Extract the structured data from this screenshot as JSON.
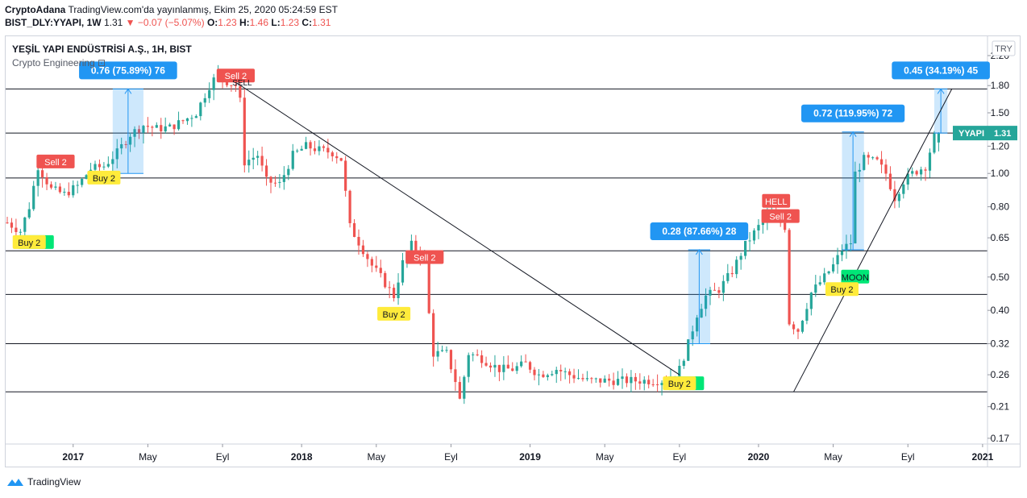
{
  "header": {
    "publisher": "CryptoAdana",
    "published_text": "TradingView.com'da yayınlanmış, Ekim 25, 2020 05:24:59 EST",
    "symbol": "BIST_DLY:YYAPI, 1W",
    "last": "1.31",
    "change": "−0.07 (−5.07%)",
    "o_label": "O:",
    "o": "1.23",
    "h_label": "H:",
    "h": "1.46",
    "l_label": "L:",
    "l": "1.23",
    "c_label": "C:",
    "c": "1.31"
  },
  "legend": {
    "title": "YEŞİL YAPI ENDÜSTRİSİ A.Ş., 1H, BIST",
    "indicator": "Crypto Engineering ⊡"
  },
  "currency": "TRY",
  "price_tag": {
    "symbol": "YYAPI",
    "value": "1.31"
  },
  "footer": {
    "brand": "TradingView"
  },
  "colors": {
    "up": "#26a69a",
    "down": "#ef5350",
    "measure": "#2196f3",
    "sell": "#ef5350",
    "buy": "#ffeb3b",
    "moon": "#00e676"
  },
  "chart_data": {
    "type": "candlestick",
    "y_scale": "log",
    "ylim": [
      0.155,
      2.45
    ],
    "y_ticks": [
      "2.20",
      "1.80",
      "1.50",
      "1.20",
      "1.00",
      "0.80",
      "0.65",
      "0.50",
      "0.40",
      "0.32",
      "0.26",
      "0.21",
      "0.17"
    ],
    "x_ticks": [
      {
        "label": "2017",
        "week": 15,
        "bold": true
      },
      {
        "label": "May",
        "week": 32
      },
      {
        "label": "Eyl",
        "week": 49
      },
      {
        "label": "2018",
        "week": 67,
        "bold": true
      },
      {
        "label": "May",
        "week": 84
      },
      {
        "label": "Eyl",
        "week": 101
      },
      {
        "label": "2019",
        "week": 119,
        "bold": true
      },
      {
        "label": "May",
        "week": 136
      },
      {
        "label": "Eyl",
        "week": 153
      },
      {
        "label": "2020",
        "week": 171,
        "bold": true
      },
      {
        "label": "May",
        "week": 188
      },
      {
        "label": "Eyl",
        "week": 205
      },
      {
        "label": "2021",
        "week": 222,
        "bold": true
      }
    ],
    "close_path": [
      [
        0,
        0.72
      ],
      [
        3,
        0.68
      ],
      [
        5,
        0.8
      ],
      [
        7,
        1.05
      ],
      [
        10,
        0.9
      ],
      [
        13,
        0.87
      ],
      [
        16,
        0.92
      ],
      [
        19,
        1.03
      ],
      [
        22,
        1.05
      ],
      [
        25,
        1.15
      ],
      [
        28,
        1.3
      ],
      [
        31,
        1.38
      ],
      [
        34,
        1.35
      ],
      [
        37,
        1.36
      ],
      [
        40,
        1.42
      ],
      [
        43,
        1.5
      ],
      [
        46,
        1.8
      ],
      [
        48,
        1.95
      ],
      [
        50,
        1.85
      ],
      [
        52,
        1.8
      ],
      [
        53,
        1.62
      ],
      [
        54,
        1.08
      ],
      [
        57,
        1.13
      ],
      [
        59,
        0.95
      ],
      [
        62,
        0.93
      ],
      [
        65,
        1.13
      ],
      [
        68,
        1.2
      ],
      [
        71,
        1.17
      ],
      [
        74,
        1.15
      ],
      [
        76,
        1.1
      ],
      [
        78,
        0.7
      ],
      [
        81,
        0.6
      ],
      [
        83,
        0.54
      ],
      [
        85,
        0.5
      ],
      [
        88,
        0.44
      ],
      [
        90,
        0.55
      ],
      [
        92,
        0.62
      ],
      [
        95,
        0.57
      ],
      [
        96,
        0.39
      ],
      [
        97,
        0.3
      ],
      [
        100,
        0.3
      ],
      [
        102,
        0.25
      ],
      [
        103,
        0.22
      ],
      [
        105,
        0.3
      ],
      [
        108,
        0.29
      ],
      [
        112,
        0.27
      ],
      [
        115,
        0.27
      ],
      [
        118,
        0.28
      ],
      [
        121,
        0.26
      ],
      [
        125,
        0.27
      ],
      [
        128,
        0.26
      ],
      [
        132,
        0.25
      ],
      [
        136,
        0.25
      ],
      [
        140,
        0.25
      ],
      [
        145,
        0.25
      ],
      [
        150,
        0.25
      ],
      [
        153,
        0.27
      ],
      [
        155,
        0.32
      ],
      [
        157,
        0.39
      ],
      [
        159,
        0.44
      ],
      [
        162,
        0.46
      ],
      [
        165,
        0.52
      ],
      [
        168,
        0.62
      ],
      [
        171,
        0.7
      ],
      [
        174,
        0.76
      ],
      [
        177,
        0.7
      ],
      [
        178,
        0.37
      ],
      [
        180,
        0.35
      ],
      [
        183,
        0.45
      ],
      [
        186,
        0.5
      ],
      [
        188,
        0.54
      ],
      [
        190,
        0.6
      ],
      [
        192,
        0.63
      ],
      [
        193,
        1.0
      ],
      [
        195,
        1.1
      ],
      [
        198,
        1.08
      ],
      [
        200,
        1.0
      ],
      [
        202,
        0.85
      ],
      [
        204,
        0.95
      ],
      [
        206,
        1.0
      ],
      [
        209,
        1.05
      ],
      [
        211,
        1.28
      ],
      [
        212,
        1.31
      ]
    ],
    "horizontal_levels": [
      1.76,
      1.31,
      0.97,
      0.596,
      0.445,
      0.32,
      0.232
    ],
    "trendlines": [
      {
        "from": [
          52,
          1.84
        ],
        "to": [
          153,
          0.26
        ]
      },
      {
        "from": [
          179,
          0.232
        ],
        "to": [
          215,
          1.76
        ]
      }
    ],
    "measure_boxes": [
      {
        "label": "0.76 (75.89%) 76",
        "x0": 24,
        "x1": 31,
        "bottom": 1.0,
        "top": 1.76
      },
      {
        "label": "0.28 (87.66%) 28",
        "x0": 155,
        "x1": 160,
        "bottom": 0.32,
        "top": 0.6
      },
      {
        "label": "0.72 (119.95%) 72",
        "x0": 190,
        "x1": 195,
        "bottom": 0.6,
        "top": 1.32
      },
      {
        "label": "0.45 (34.19%) 45",
        "x0": 211,
        "x1": 214,
        "bottom": 1.31,
        "top": 1.76
      }
    ],
    "signals": [
      {
        "text": "Sell 2",
        "kind": "sell",
        "week": 11,
        "price": 1.08
      },
      {
        "text": "Buy 2",
        "kind": "buy",
        "week": 22,
        "price": 0.97
      },
      {
        "text": "Buy 2",
        "kind": "buy",
        "week": 5,
        "price": 0.63,
        "with_green": true
      },
      {
        "text": "Sell 2",
        "kind": "sell",
        "week": 52,
        "price": 1.92,
        "ghost": "SELL"
      },
      {
        "text": "Sell 2",
        "kind": "sell",
        "week": 95,
        "price": 0.57
      },
      {
        "text": "Buy 2",
        "kind": "buy",
        "week": 88,
        "price": 0.39
      },
      {
        "text": "Buy 2",
        "kind": "buy",
        "week": 153,
        "price": 0.245,
        "with_green": true
      },
      {
        "text": "HELL",
        "kind": "sell",
        "week": 175,
        "price": 0.83
      },
      {
        "text": "Sell 2",
        "kind": "sell",
        "week": 176,
        "price": 0.75
      },
      {
        "text": "MOON",
        "kind": "moon",
        "week": 193,
        "price": 0.5
      },
      {
        "text": "Buy 2",
        "kind": "buy",
        "week": 190,
        "price": 0.46
      }
    ]
  }
}
